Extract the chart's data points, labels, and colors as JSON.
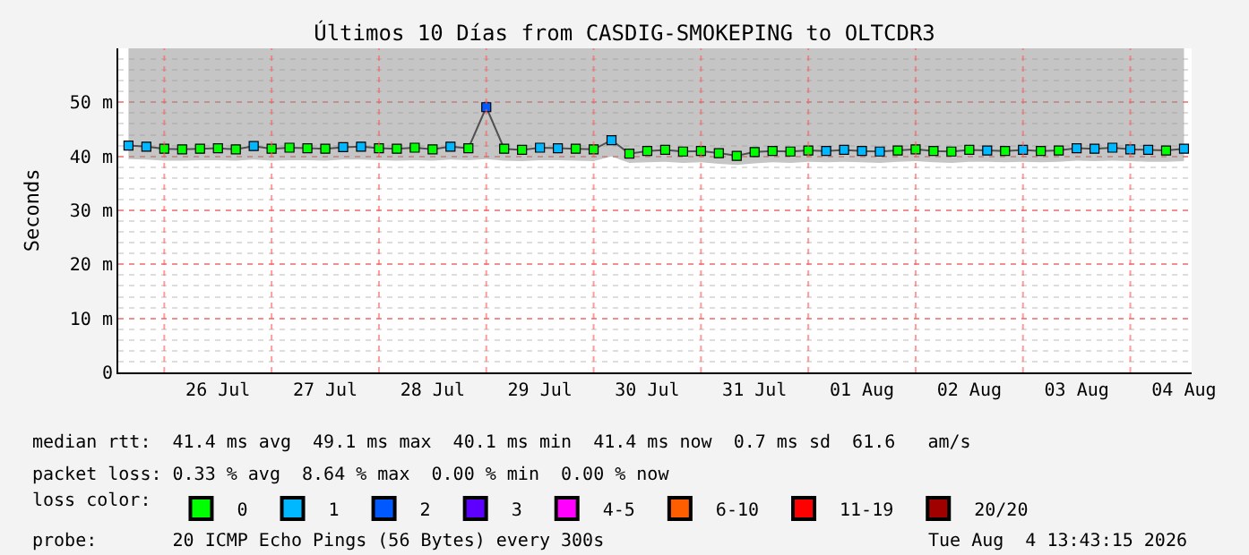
{
  "chart_data": {
    "type": "line",
    "title": "Últimos 10 Días from CASDIG-SMOKEPING to OLTCDR3",
    "ylabel": "Seconds",
    "legend_title": "loss color:",
    "legend": "bottom",
    "grid": true,
    "xlim": [
      "2026-07-25T13:43",
      "2026-08-04T13:43"
    ],
    "xticks": [
      {
        "value": "2026-07-26",
        "label": null
      },
      {
        "value": "2026-07-26T12:00",
        "label": "26 Jul"
      },
      {
        "value": "2026-07-27",
        "label": null
      },
      {
        "value": "2026-07-27T12:00",
        "label": "27 Jul"
      },
      {
        "value": "2026-07-28",
        "label": null
      },
      {
        "value": "2026-07-28T12:00",
        "label": "28 Jul"
      },
      {
        "value": "2026-07-29",
        "label": null
      },
      {
        "value": "2026-07-29T12:00",
        "label": "29 Jul"
      },
      {
        "value": "2026-07-30",
        "label": null
      },
      {
        "value": "2026-07-30T12:00",
        "label": "30 Jul"
      },
      {
        "value": "2026-07-31",
        "label": null
      },
      {
        "value": "2026-07-31T12:00",
        "label": "31 Jul"
      },
      {
        "value": "2026-08-01",
        "label": null
      },
      {
        "value": "2026-08-01T12:00",
        "label": "01 Aug"
      },
      {
        "value": "2026-08-02",
        "label": null
      },
      {
        "value": "2026-08-02T12:00",
        "label": "02 Aug"
      },
      {
        "value": "2026-08-03",
        "label": null
      },
      {
        "value": "2026-08-03T12:00",
        "label": "03 Aug"
      },
      {
        "value": "2026-08-04",
        "label": null
      },
      {
        "value": "2026-08-04T12:00",
        "label": "04 Aug"
      }
    ],
    "ylim": [
      0,
      60
    ],
    "yticks": [
      0,
      {
        "value": 10,
        "label": "10 m"
      },
      {
        "value": 20,
        "label": "20 m"
      },
      {
        "value": 30,
        "label": "30 m"
      },
      {
        "value": 40,
        "label": "40 m"
      },
      {
        "value": 50,
        "label": "50 m"
      }
    ],
    "x": [
      "2026-07-25T16:00",
      "2026-07-25T20:00",
      "2026-07-26T00:00",
      "2026-07-26T04:00",
      "2026-07-26T08:00",
      "2026-07-26T12:00",
      "2026-07-26T16:00",
      "2026-07-26T20:00",
      "2026-07-27T00:00",
      "2026-07-27T04:00",
      "2026-07-27T08:00",
      "2026-07-27T12:00",
      "2026-07-27T16:00",
      "2026-07-27T20:00",
      "2026-07-28T00:00",
      "2026-07-28T04:00",
      "2026-07-28T08:00",
      "2026-07-28T12:00",
      "2026-07-28T16:00",
      "2026-07-28T20:00",
      "2026-07-29T00:00",
      "2026-07-29T04:00",
      "2026-07-29T08:00",
      "2026-07-29T12:00",
      "2026-07-29T16:00",
      "2026-07-29T20:00",
      "2026-07-30T00:00",
      "2026-07-30T04:00",
      "2026-07-30T08:00",
      "2026-07-30T12:00",
      "2026-07-30T16:00",
      "2026-07-30T20:00",
      "2026-07-31T00:00",
      "2026-07-31T04:00",
      "2026-07-31T08:00",
      "2026-07-31T12:00",
      "2026-07-31T16:00",
      "2026-07-31T20:00",
      "2026-08-01T00:00",
      "2026-08-01T04:00",
      "2026-08-01T08:00",
      "2026-08-01T12:00",
      "2026-08-01T16:00",
      "2026-08-01T20:00",
      "2026-08-02T00:00",
      "2026-08-02T04:00",
      "2026-08-02T08:00",
      "2026-08-02T12:00",
      "2026-08-02T16:00",
      "2026-08-02T20:00",
      "2026-08-03T00:00",
      "2026-08-03T04:00",
      "2026-08-03T08:00",
      "2026-08-03T12:00",
      "2026-08-03T16:00",
      "2026-08-03T20:00",
      "2026-08-04T00:00",
      "2026-08-04T04:00",
      "2026-08-04T08:00",
      "2026-08-04T12:00"
    ],
    "series": [
      {
        "color": "#505050",
        "values": [
          42.0,
          41.8,
          41.4,
          41.3,
          41.4,
          41.5,
          41.3,
          41.9,
          41.4,
          41.6,
          41.5,
          41.4,
          41.7,
          41.8,
          41.5,
          41.4,
          41.6,
          41.3,
          41.8,
          41.5,
          49.1,
          41.4,
          41.2,
          41.6,
          41.5,
          41.4,
          41.3,
          43.0,
          40.5,
          41.0,
          41.2,
          40.9,
          41.0,
          40.6,
          40.1,
          40.8,
          41.0,
          40.9,
          41.1,
          41.0,
          41.2,
          41.0,
          40.9,
          41.1,
          41.3,
          41.0,
          40.9,
          41.2,
          41.1,
          41.0,
          41.2,
          41.0,
          41.1,
          41.5,
          41.4,
          41.6,
          41.3,
          41.2,
          41.1,
          41.4
        ],
        "lower": [
          39.5,
          39.4,
          39.2,
          39.2,
          39.3,
          39.3,
          39.2,
          39.4,
          39.2,
          39.3,
          39.3,
          39.2,
          39.4,
          39.4,
          39.3,
          39.2,
          39.3,
          39.2,
          39.4,
          39.3,
          39.5,
          39.2,
          39.1,
          39.3,
          39.3,
          39.2,
          39.1,
          40.0,
          38.8,
          38.9,
          39.0,
          38.8,
          38.9,
          38.6,
          38.4,
          38.7,
          38.9,
          38.8,
          39.0,
          38.9,
          39.0,
          38.9,
          38.8,
          39.0,
          39.1,
          38.9,
          38.8,
          39.0,
          39.0,
          38.9,
          39.0,
          38.9,
          39.0,
          39.2,
          39.1,
          39.2,
          39.1,
          39.0,
          39.0,
          39.1
        ],
        "upper": [
          60,
          60,
          60,
          60,
          60,
          60,
          60,
          60,
          60,
          60,
          60,
          60,
          60,
          60,
          60,
          60,
          60,
          60,
          60,
          60,
          60,
          60,
          60,
          60,
          60,
          60,
          60,
          60,
          60,
          60,
          60,
          60,
          60,
          60,
          60,
          60,
          60,
          60,
          60,
          60,
          60,
          60,
          60,
          60,
          60,
          60,
          60,
          60,
          60,
          60,
          60,
          60,
          60,
          60,
          60,
          60,
          60,
          60,
          60,
          60
        ]
      },
      {
        "name": "0",
        "type": "scatter",
        "marker": "square",
        "color": "#00ff00",
        "values": [
          null,
          null,
          41.4,
          41.3,
          41.4,
          41.5,
          41.3,
          null,
          41.4,
          41.6,
          41.5,
          41.4,
          null,
          null,
          41.5,
          41.4,
          41.6,
          41.3,
          null,
          41.5,
          null,
          41.4,
          41.2,
          null,
          null,
          41.4,
          41.3,
          null,
          40.5,
          41.0,
          41.2,
          40.9,
          41.0,
          40.6,
          40.1,
          40.8,
          41.0,
          40.9,
          41.1,
          null,
          null,
          null,
          null,
          41.1,
          41.3,
          41.0,
          40.9,
          41.2,
          null,
          41.0,
          null,
          41.0,
          41.1,
          null,
          null,
          null,
          null,
          null,
          41.1,
          null
        ]
      },
      {
        "name": "1",
        "type": "scatter",
        "marker": "square",
        "color": "#00b8ff",
        "values": [
          42.0,
          41.8,
          null,
          null,
          null,
          null,
          null,
          41.9,
          null,
          null,
          null,
          null,
          41.7,
          41.8,
          null,
          null,
          null,
          null,
          41.8,
          null,
          null,
          null,
          null,
          41.6,
          41.5,
          null,
          null,
          43.0,
          null,
          null,
          null,
          null,
          null,
          null,
          null,
          null,
          null,
          null,
          null,
          41.0,
          41.2,
          41.0,
          40.9,
          null,
          null,
          null,
          null,
          null,
          41.1,
          null,
          41.2,
          null,
          null,
          41.5,
          41.4,
          41.6,
          41.3,
          41.2,
          null,
          41.4
        ]
      },
      {
        "name": "2",
        "type": "scatter",
        "marker": "square",
        "color": "#0059ff",
        "values": [
          null,
          null,
          null,
          null,
          null,
          null,
          null,
          null,
          null,
          null,
          null,
          null,
          null,
          null,
          null,
          null,
          null,
          null,
          null,
          null,
          49.1,
          null,
          null,
          null,
          null,
          null,
          null,
          null,
          null,
          null,
          null,
          null,
          null,
          null,
          null,
          null,
          null,
          null,
          null,
          null,
          null,
          null,
          null,
          null,
          null,
          null,
          null,
          null,
          null,
          null,
          null,
          null,
          null,
          null,
          null,
          null,
          null,
          null,
          null,
          null
        ]
      },
      {
        "name": "3",
        "type": "scatter",
        "marker": "square",
        "color": "#5e00ff",
        "values": [
          null,
          null,
          null,
          null,
          null,
          null,
          null,
          null,
          null,
          null,
          null,
          null,
          null,
          null,
          null,
          null,
          null,
          null,
          null,
          null,
          null,
          null,
          null,
          null,
          null,
          null,
          null,
          null,
          null,
          null,
          null,
          null,
          null,
          null,
          null,
          null,
          null,
          null,
          null,
          null,
          null,
          null,
          null,
          null,
          null,
          null,
          null,
          null,
          null,
          null,
          null,
          null,
          null,
          null,
          null,
          null,
          null,
          null,
          null,
          null
        ]
      },
      {
        "name": "4-5",
        "type": "scatter",
        "marker": "square",
        "color": "#ff00fe",
        "values": [
          null,
          null,
          null,
          null,
          null,
          null,
          null,
          null,
          null,
          null,
          null,
          null,
          null,
          null,
          null,
          null,
          null,
          null,
          null,
          null,
          null,
          null,
          null,
          null,
          null,
          null,
          null,
          null,
          null,
          null,
          null,
          null,
          null,
          null,
          null,
          null,
          null,
          null,
          null,
          null,
          null,
          null,
          null,
          null,
          null,
          null,
          null,
          null,
          null,
          null,
          null,
          null,
          null,
          null,
          null,
          null,
          null,
          null,
          null,
          null
        ]
      },
      {
        "name": "6-10",
        "type": "scatter",
        "marker": "square",
        "color": "#ff5e00",
        "values": [
          null,
          null,
          null,
          null,
          null,
          null,
          null,
          null,
          null,
          null,
          null,
          null,
          null,
          null,
          null,
          null,
          null,
          null,
          null,
          null,
          null,
          null,
          null,
          null,
          null,
          null,
          null,
          null,
          null,
          null,
          null,
          null,
          null,
          null,
          null,
          null,
          null,
          null,
          null,
          null,
          null,
          null,
          null,
          null,
          null,
          null,
          null,
          null,
          null,
          null,
          null,
          null,
          null,
          null,
          null,
          null,
          null,
          null,
          null,
          null
        ]
      },
      {
        "name": "11-19",
        "type": "scatter",
        "marker": "square",
        "color": "#ff0000",
        "values": [
          null,
          null,
          null,
          null,
          null,
          null,
          null,
          null,
          null,
          null,
          null,
          null,
          null,
          null,
          null,
          null,
          null,
          null,
          null,
          null,
          null,
          null,
          null,
          null,
          null,
          null,
          null,
          null,
          null,
          null,
          null,
          null,
          null,
          null,
          null,
          null,
          null,
          null,
          null,
          null,
          null,
          null,
          null,
          null,
          null,
          null,
          null,
          null,
          null,
          null,
          null,
          null,
          null,
          null,
          null,
          null,
          null,
          null,
          null,
          null
        ]
      },
      {
        "name": "20/20",
        "type": "scatter",
        "marker": "square",
        "color": "#a10000",
        "values": [
          null,
          null,
          null,
          null,
          null,
          null,
          null,
          null,
          null,
          null,
          null,
          null,
          null,
          null,
          null,
          null,
          null,
          null,
          null,
          null,
          null,
          null,
          null,
          null,
          null,
          null,
          null,
          null,
          null,
          null,
          null,
          null,
          null,
          null,
          null,
          null,
          null,
          null,
          null,
          null,
          null,
          null,
          null,
          null,
          null,
          null,
          null,
          null,
          null,
          null,
          null,
          null,
          null,
          null,
          null,
          null,
          null,
          null,
          null,
          null
        ]
      }
    ],
    "annotations": [
      "median rtt:  41.4 ms avg  49.1 ms max  40.1 ms min  41.4 ms now  0.7 ms sd  61.6   am/s",
      "packet loss: 0.33 % avg  8.64 % max  0.00 % min  0.00 % now",
      "probe:       20 ICMP Echo Pings (56 Bytes) every 300s",
      "Tue Aug  4 13:43:15 2026"
    ]
  }
}
